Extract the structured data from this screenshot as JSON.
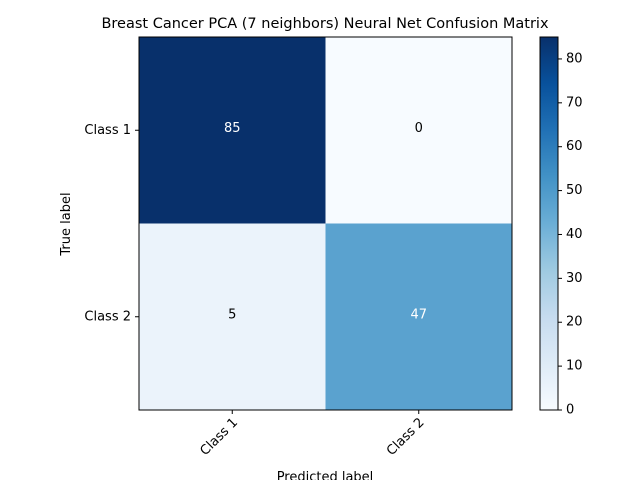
{
  "chart_data": {
    "type": "heatmap",
    "title": "Breast Cancer PCA (7 neighbors) Neural Net Confusion Matrix",
    "xlabel": "Predicted label",
    "ylabel": "True label",
    "x_categories": [
      "Class 1",
      "Class 2"
    ],
    "y_categories": [
      "Class 1",
      "Class 2"
    ],
    "values": [
      [
        85,
        0
      ],
      [
        5,
        47
      ]
    ],
    "colormap": "Blues",
    "colorbar": {
      "min": 0,
      "max": 85,
      "ticks": [
        "0",
        "10",
        "20",
        "30",
        "40",
        "50",
        "60",
        "70",
        "80"
      ]
    },
    "grid": false
  }
}
